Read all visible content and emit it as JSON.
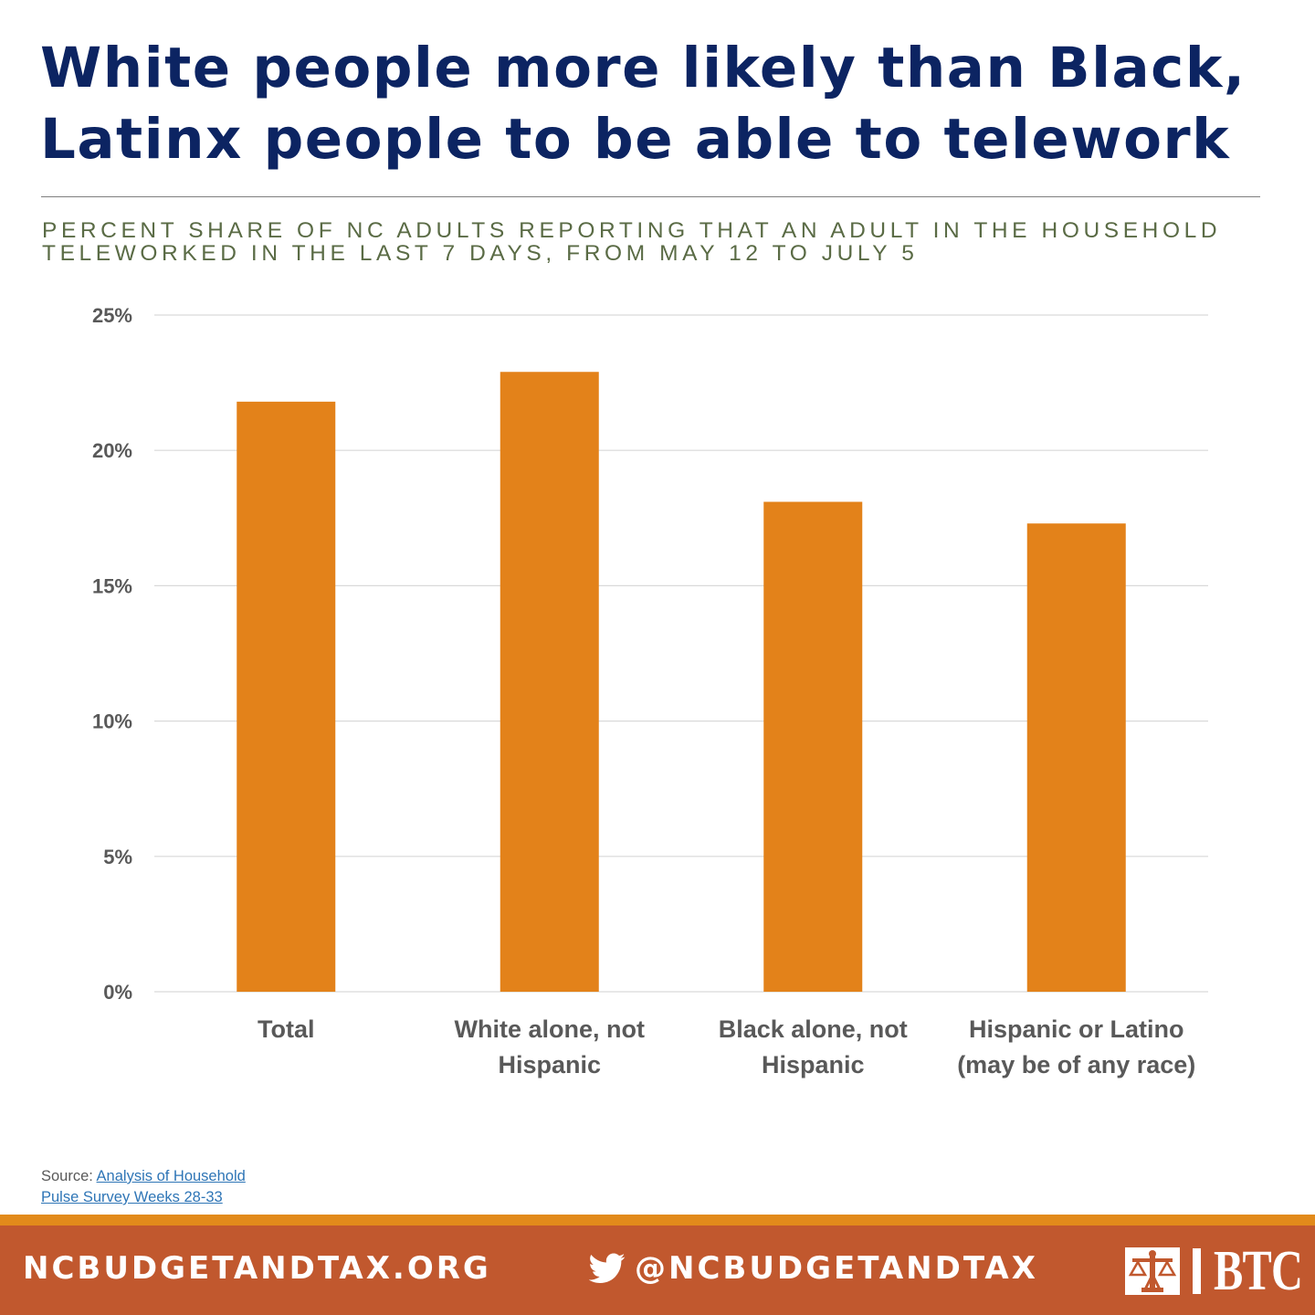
{
  "header": {
    "title_line1": "White people more likely than Black,",
    "title_line2": "Latinx people to be able to telework",
    "subtitle_line1": "PERCENT SHARE OF NC ADULTS REPORTING THAT AN ADULT IN THE HOUSEHOLD",
    "subtitle_line2": "TELEWORKED IN THE LAST 7 DAYS, FROM MAY 12 TO JULY 5"
  },
  "chart_data": {
    "type": "bar",
    "categories": [
      [
        "Total"
      ],
      [
        "White alone, not",
        "Hispanic"
      ],
      [
        "Black alone, not",
        "Hispanic"
      ],
      [
        "Hispanic or Latino",
        "(may be of any race)"
      ]
    ],
    "values": [
      21.8,
      22.9,
      18.1,
      17.3
    ],
    "ylim": [
      0,
      25
    ],
    "yticks": [
      0,
      5,
      10,
      15,
      20,
      25
    ],
    "ytick_labels": [
      "0%",
      "5%",
      "10%",
      "15%",
      "20%",
      "25%"
    ],
    "grid": true,
    "bar_color": "#e3821a"
  },
  "source": {
    "label": "Source: ",
    "link_line1": "Analysis of Household",
    "link_line2": "Pulse Survey Weeks 28-33"
  },
  "footer": {
    "website": "NCBUDGETANDTAX.ORG",
    "twitter_handle": "@NCBUDGETANDTAX",
    "logo_text": "BTC",
    "twitter_icon": "twitter-bird-icon",
    "logo_icon": "scales-icon"
  },
  "colors": {
    "title": "#0c2462",
    "subtitle": "#5a6b45",
    "footer_bg": "#c1582e",
    "footer_stripe": "#e28a1b"
  }
}
